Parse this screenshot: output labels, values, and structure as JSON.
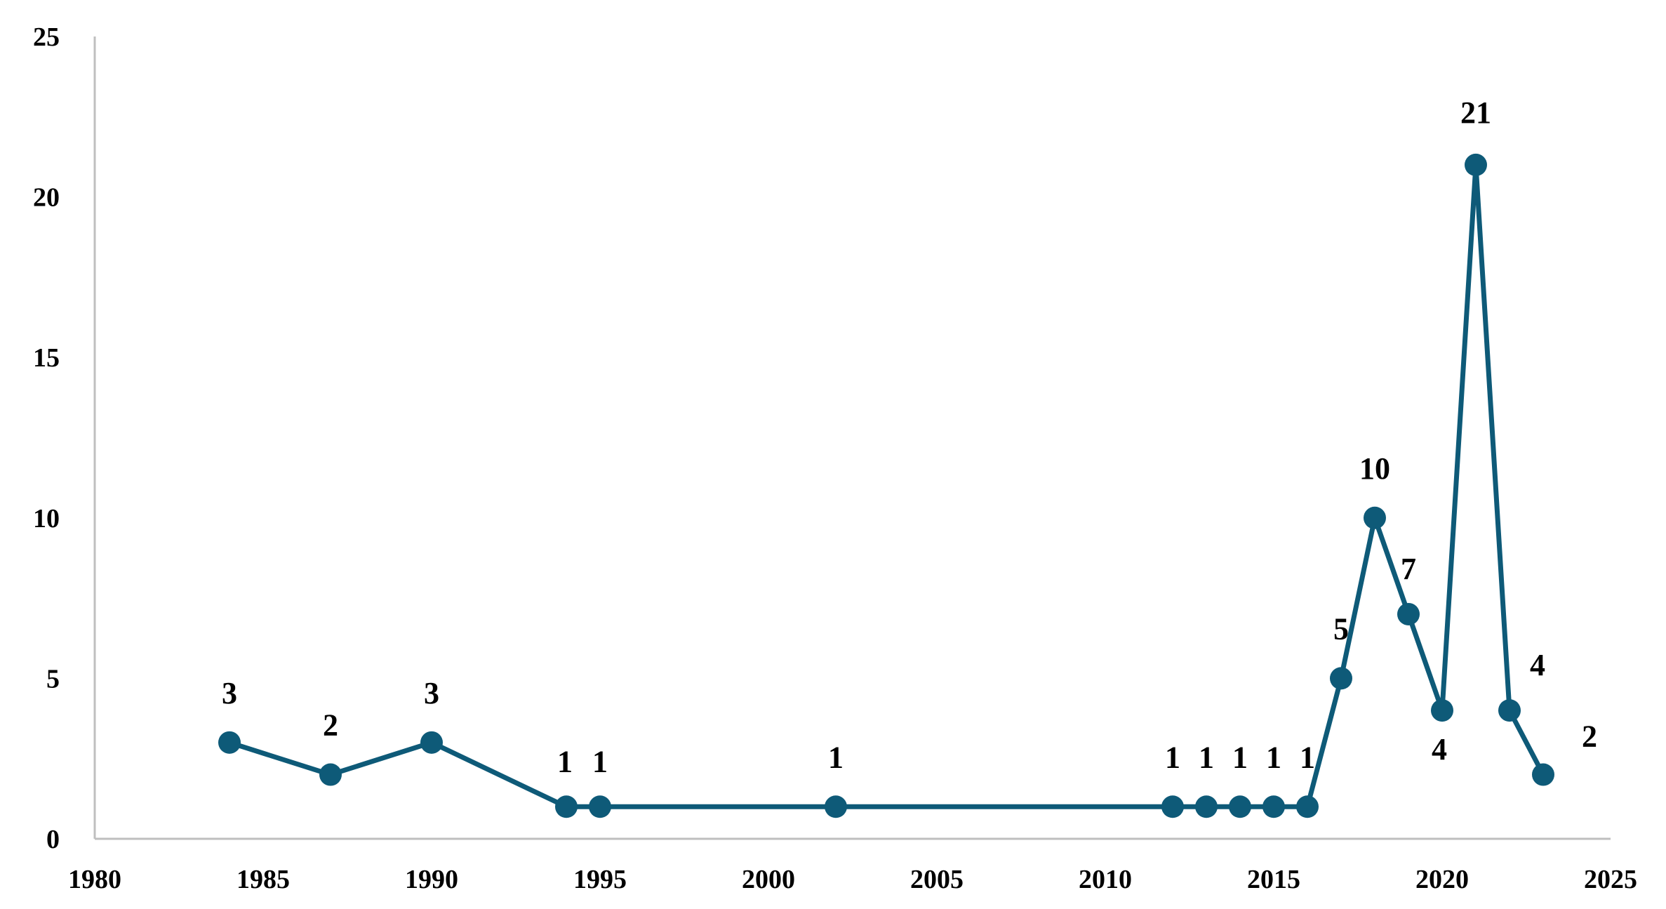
{
  "chart_data": {
    "type": "line",
    "title": "",
    "xlabel": "",
    "ylabel": "",
    "xlim": [
      1980,
      2025
    ],
    "ylim": [
      0,
      25
    ],
    "x_ticks": [
      "1980",
      "1985",
      "1990",
      "1995",
      "2000",
      "2005",
      "2010",
      "2015",
      "2020",
      "2025"
    ],
    "y_ticks": [
      "0",
      "5",
      "10",
      "15",
      "20",
      "25"
    ],
    "grid": false,
    "legend": "none",
    "series": [
      {
        "color": "#0e5a78",
        "points": [
          {
            "x": 1984,
            "y": 3,
            "label": "3"
          },
          {
            "x": 1987,
            "y": 2,
            "label": "2"
          },
          {
            "x": 1990,
            "y": 3,
            "label": "3"
          },
          {
            "x": 1994,
            "y": 1,
            "label": "1"
          },
          {
            "x": 1995,
            "y": 1,
            "label": "1"
          },
          {
            "x": 2002,
            "y": 1,
            "label": "1"
          },
          {
            "x": 2012,
            "y": 1,
            "label": "1"
          },
          {
            "x": 2013,
            "y": 1,
            "label": "1"
          },
          {
            "x": 2014,
            "y": 1,
            "label": "1"
          },
          {
            "x": 2015,
            "y": 1,
            "label": "1"
          },
          {
            "x": 2016,
            "y": 1,
            "label": "1"
          },
          {
            "x": 2017,
            "y": 5,
            "label": "5"
          },
          {
            "x": 2018,
            "y": 10,
            "label": "10"
          },
          {
            "x": 2019,
            "y": 7,
            "label": "7"
          },
          {
            "x": 2020,
            "y": 4,
            "label": "4"
          },
          {
            "x": 2021,
            "y": 21,
            "label": "21"
          },
          {
            "x": 2022,
            "y": 4,
            "label": "4"
          },
          {
            "x": 2023,
            "y": 2,
            "label": "2"
          }
        ]
      }
    ]
  }
}
